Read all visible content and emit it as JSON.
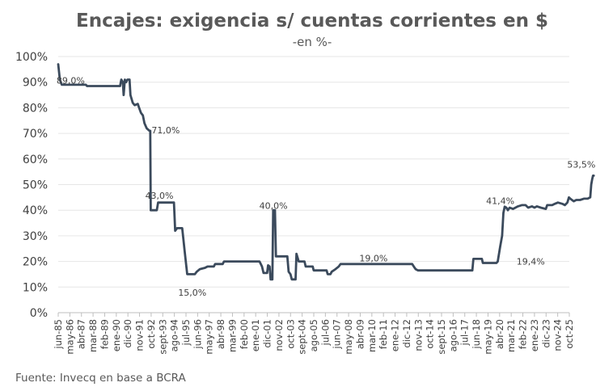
{
  "chart_data": {
    "type": "line",
    "title": "Encajes: exigencia s/ cuentas corrientes en $",
    "subtitle": "-en %-",
    "source": "Fuente: Invecq en base a BCRA",
    "xlabel": "",
    "ylabel": "",
    "ylim": [
      0,
      100
    ],
    "y_ticks": [
      "0%",
      "10%",
      "20%",
      "30%",
      "40%",
      "50%",
      "60%",
      "70%",
      "80%",
      "90%",
      "100%"
    ],
    "x_range": [
      1985.42,
      2025.75
    ],
    "x_tick_labels": [
      "jun-85",
      "may-86",
      "abr-87",
      "mar-88",
      "feb-89",
      "ene-90",
      "dic-90",
      "nov-91",
      "oct-92",
      "sept-93",
      "ago-94",
      "jul-95",
      "jun-96",
      "may-97",
      "abr-98",
      "mar-99",
      "feb-00",
      "ene-01",
      "dic-01",
      "nov-02",
      "oct-03",
      "sept-04",
      "ago-05",
      "jul-06",
      "jun-07",
      "may-08",
      "abr-09",
      "mar-10",
      "feb-11",
      "ene-12",
      "dic-12",
      "nov-13",
      "oct-14",
      "sept-15",
      "ago-16",
      "jul-17",
      "jun-18",
      "may-19",
      "abr-20",
      "mar-21",
      "feb-22",
      "ene-23",
      "dic-23",
      "nov-24",
      "oct-25"
    ],
    "series": [
      {
        "name": "Exigencia cuentas corrientes en $",
        "color": "#3b4a5c",
        "points": [
          [
            1985.42,
            97
          ],
          [
            1985.55,
            91
          ],
          [
            1985.7,
            89
          ],
          [
            1987.6,
            89
          ],
          [
            1987.7,
            88.5
          ],
          [
            1990.3,
            88.5
          ],
          [
            1990.4,
            91
          ],
          [
            1990.52,
            90
          ],
          [
            1990.58,
            85
          ],
          [
            1990.68,
            91
          ],
          [
            1990.78,
            90
          ],
          [
            1990.88,
            91
          ],
          [
            1991.05,
            91
          ],
          [
            1991.12,
            85
          ],
          [
            1991.3,
            82
          ],
          [
            1991.45,
            81
          ],
          [
            1991.7,
            81.5
          ],
          [
            1991.8,
            80
          ],
          [
            1991.95,
            78
          ],
          [
            1992.1,
            77
          ],
          [
            1992.22,
            74
          ],
          [
            1992.4,
            72
          ],
          [
            1992.62,
            71
          ],
          [
            1992.68,
            71
          ],
          [
            1992.72,
            40
          ],
          [
            1993.2,
            40
          ],
          [
            1993.3,
            43
          ],
          [
            1994.55,
            43
          ],
          [
            1994.65,
            32
          ],
          [
            1994.8,
            33
          ],
          [
            1995.2,
            33
          ],
          [
            1995.42,
            23
          ],
          [
            1995.6,
            15
          ],
          [
            1996.2,
            15
          ],
          [
            1996.35,
            16
          ],
          [
            1996.6,
            17
          ],
          [
            1997.0,
            17.5
          ],
          [
            1997.2,
            18
          ],
          [
            1997.7,
            18
          ],
          [
            1997.8,
            19
          ],
          [
            1998.4,
            19
          ],
          [
            1998.5,
            20
          ],
          [
            2001.3,
            20
          ],
          [
            2001.5,
            18
          ],
          [
            2001.62,
            15.5
          ],
          [
            2001.9,
            15.5
          ],
          [
            2001.98,
            18.5
          ],
          [
            2002.1,
            18
          ],
          [
            2002.18,
            13
          ],
          [
            2002.32,
            13
          ],
          [
            2002.38,
            40
          ],
          [
            2002.52,
            40
          ],
          [
            2002.6,
            22
          ],
          [
            2003.5,
            22
          ],
          [
            2003.6,
            16
          ],
          [
            2003.75,
            15
          ],
          [
            2003.85,
            13
          ],
          [
            2004.15,
            13
          ],
          [
            2004.22,
            23
          ],
          [
            2004.4,
            20
          ],
          [
            2004.85,
            20
          ],
          [
            2004.95,
            18
          ],
          [
            2005.5,
            18
          ],
          [
            2005.58,
            16.5
          ],
          [
            2006.6,
            16.5
          ],
          [
            2006.68,
            15
          ],
          [
            2006.9,
            15
          ],
          [
            2007.0,
            16
          ],
          [
            2007.3,
            17
          ],
          [
            2007.55,
            18
          ],
          [
            2007.7,
            19
          ],
          [
            2013.35,
            19
          ],
          [
            2013.48,
            18
          ],
          [
            2013.62,
            17
          ],
          [
            2013.82,
            16.5
          ],
          [
            2018.1,
            16.5
          ],
          [
            2018.18,
            21
          ],
          [
            2018.85,
            21
          ],
          [
            2018.93,
            19.4
          ],
          [
            2020.0,
            19.4
          ],
          [
            2020.1,
            20
          ],
          [
            2020.3,
            26
          ],
          [
            2020.45,
            30
          ],
          [
            2020.55,
            39
          ],
          [
            2020.65,
            41.4
          ],
          [
            2020.78,
            41
          ],
          [
            2020.9,
            40
          ],
          [
            2021.05,
            41
          ],
          [
            2021.3,
            40.5
          ],
          [
            2021.5,
            41
          ],
          [
            2021.7,
            41.5
          ],
          [
            2022.0,
            42
          ],
          [
            2022.3,
            42
          ],
          [
            2022.5,
            41
          ],
          [
            2022.8,
            41.5
          ],
          [
            2023.0,
            41
          ],
          [
            2023.2,
            41.5
          ],
          [
            2023.5,
            41
          ],
          [
            2023.9,
            40.5
          ],
          [
            2024.0,
            42
          ],
          [
            2024.4,
            42
          ],
          [
            2024.6,
            42.5
          ],
          [
            2024.85,
            43
          ],
          [
            2025.2,
            42.5
          ],
          [
            2025.4,
            42
          ],
          [
            2025.6,
            43
          ],
          [
            2025.72,
            45
          ],
          [
            2025.82,
            44.5
          ],
          [
            2026.1,
            43.5
          ],
          [
            2026.3,
            44
          ],
          [
            2026.6,
            44
          ],
          [
            2026.9,
            44.5
          ],
          [
            2027.2,
            44.5
          ],
          [
            2027.4,
            45
          ],
          [
            2027.48,
            50
          ],
          [
            2027.55,
            52
          ],
          [
            2027.62,
            53.5
          ],
          [
            2027.68,
            53.5
          ]
        ]
      }
    ],
    "annotations": [
      {
        "text": "89,0%",
        "x": 1986.4,
        "y": 89.5
      },
      {
        "text": "71,0%",
        "x": 1993.9,
        "y": 70
      },
      {
        "text": "43,0%",
        "x": 1993.4,
        "y": 44.5
      },
      {
        "text": "15,0%",
        "x": 1996.0,
        "y": 6.7
      },
      {
        "text": "40,0%",
        "x": 2002.4,
        "y": 40.6
      },
      {
        "text": "19,0%",
        "x": 2010.3,
        "y": 20
      },
      {
        "text": "41,4%",
        "x": 2020.3,
        "y": 42.5
      },
      {
        "text": "19,4%",
        "x": 2022.7,
        "y": 18.7
      },
      {
        "text": "53,5%",
        "x": 2026.7,
        "y": 56.6
      }
    ]
  }
}
